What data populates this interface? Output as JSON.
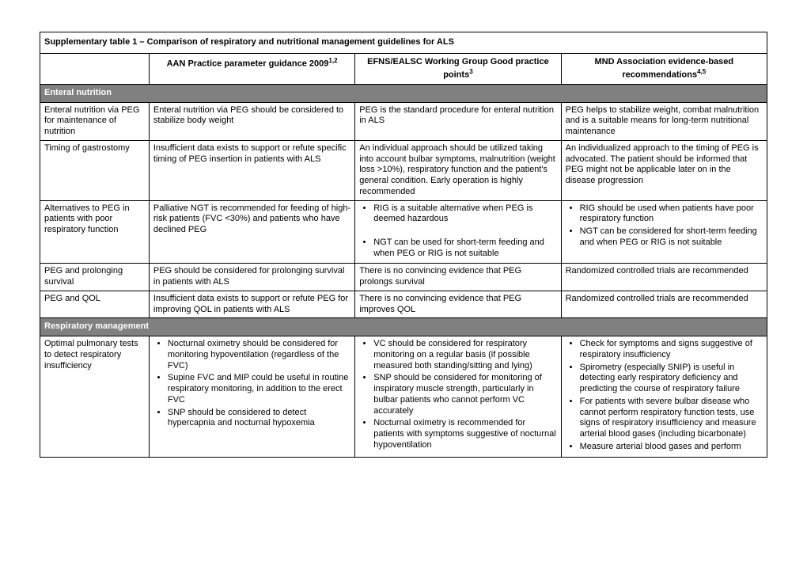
{
  "title": "Supplementary table 1 – Comparison of respiratory and nutritional management guidelines for ALS",
  "headers": {
    "aan": "AAN Practice parameter guidance 2009",
    "aan_sup": "1,2",
    "efns": "EFNS/EALSC Working Group Good practice points",
    "efns_sup": "3",
    "mnd": "MND Association evidence-based recommendations",
    "mnd_sup": "4,5"
  },
  "section1": "Enteral nutrition",
  "row1": {
    "topic": "Enteral nutrition via PEG for maintenance of nutrition",
    "aan": "Enteral nutrition via PEG should be considered to stabilize body weight",
    "efns": "PEG is the standard procedure for enteral nutrition in ALS",
    "mnd": "PEG helps to stabilize weight, combat malnutrition and is a suitable means for long-term nutritional maintenance"
  },
  "row2": {
    "topic": "Timing of gastrostomy",
    "aan": "Insufficient data exists to support or refute specific timing of PEG insertion in patients with ALS",
    "efns": "An individual approach should be utilized taking into account bulbar symptoms, malnutrition (weight loss >10%), respiratory function and the patient's general condition. Early operation is highly recommended",
    "mnd": "An individualized approach to the timing of PEG is advocated. The patient should be informed that PEG might not be applicable later on in the disease progression"
  },
  "row3": {
    "topic": "Alternatives to PEG in patients with poor respiratory function",
    "aan": "Palliative NGT is recommended for feeding of high-risk patients (FVC <30%) and patients who have declined PEG",
    "efns_b1": "RIG is a suitable alternative when PEG is deemed hazardous",
    "efns_b2": "NGT can be used for short-term feeding and when PEG or RIG is not suitable",
    "mnd_b1": "RIG should be used when patients have poor respiratory function",
    "mnd_b2": "NGT can be considered for short-term feeding and when PEG or RIG is not suitable"
  },
  "row4": {
    "topic": "PEG and prolonging survival",
    "aan": "PEG should be considered for prolonging survival in patients with ALS",
    "efns": "There is no convincing evidence that PEG prolongs survival",
    "mnd": "Randomized controlled trials are recommended"
  },
  "row5": {
    "topic": "PEG and QOL",
    "aan": "Insufficient data exists to support or refute PEG for improving QOL in patients with ALS",
    "efns": "There is no convincing evidence that PEG improves QOL",
    "mnd": "Randomized controlled trials are recommended"
  },
  "section2": "Respiratory management",
  "row6": {
    "topic": "Optimal pulmonary tests to detect respiratory insufficiency",
    "aan_b1": "Nocturnal oximetry should be considered for monitoring hypoventilation (regardless of the FVC)",
    "aan_b2": "Supine FVC and MIP could be useful in routine respiratory monitoring, in addition to the erect FVC",
    "aan_b3": "SNP should be considered to detect hypercapnia and nocturnal hypoxemia",
    "efns_b1": "VC should be considered for respiratory monitoring on a regular basis (if possible measured both standing/sitting and lying)",
    "efns_b2": "SNP should be considered for monitoring of inspiratory muscle strength, particularly in bulbar patients who cannot perform VC accurately",
    "efns_b3": "Nocturnal oximetry is recommended for patients with symptoms suggestive of nocturnal hypoventilation",
    "mnd_b1": "Check for symptoms and signs suggestive of respiratory insufficiency",
    "mnd_b2": "Spirometry (especially SNIP) is useful in detecting early respiratory deficiency and predicting the course of respiratory failure",
    "mnd_b3": "For patients with severe bulbar disease who cannot perform respiratory function tests, use signs of respiratory insufficiency and measure arterial blood gases (including bicarbonate)",
    "mnd_b4": "Measure arterial blood gases and perform"
  }
}
